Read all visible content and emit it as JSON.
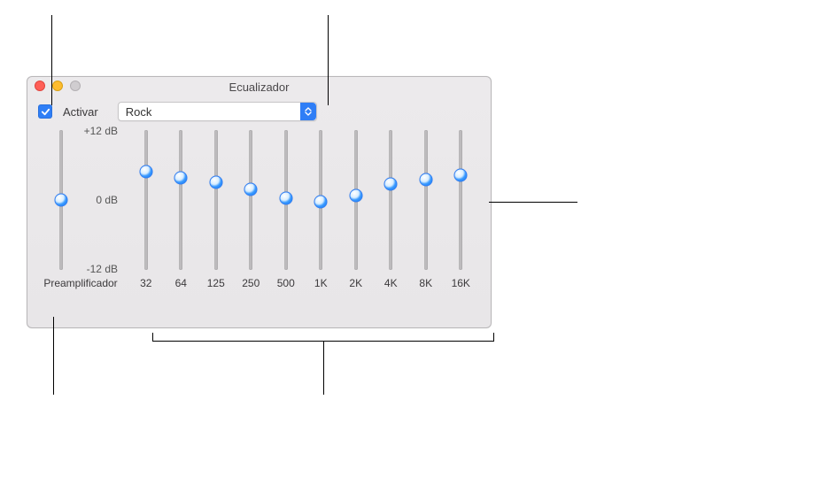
{
  "window": {
    "title": "Ecualizador"
  },
  "checkbox": {
    "label": "Activar",
    "checked": true
  },
  "preset": {
    "selected": "Rock"
  },
  "scale": {
    "top": "+12 dB",
    "mid": "0 dB",
    "bottom": "-12 dB",
    "min": -12,
    "max": 12
  },
  "preamp": {
    "label": "Preamplificador",
    "value": 0
  },
  "bands": [
    {
      "label": "32",
      "value": 4.8
    },
    {
      "label": "64",
      "value": 3.8
    },
    {
      "label": "125",
      "value": 3.0
    },
    {
      "label": "250",
      "value": 1.8
    },
    {
      "label": "500",
      "value": 0.3
    },
    {
      "label": "1K",
      "value": -0.3
    },
    {
      "label": "2K",
      "value": 0.8
    },
    {
      "label": "4K",
      "value": 2.8
    },
    {
      "label": "8K",
      "value": 3.5
    },
    {
      "label": "16K",
      "value": 4.3
    }
  ],
  "colors": {
    "accent": "#2f7ef6",
    "window_bg_top": "#eceaec",
    "window_bg_bottom": "#e8e6e8",
    "border": "#b9b7b9",
    "track": "#b8b6b8"
  }
}
